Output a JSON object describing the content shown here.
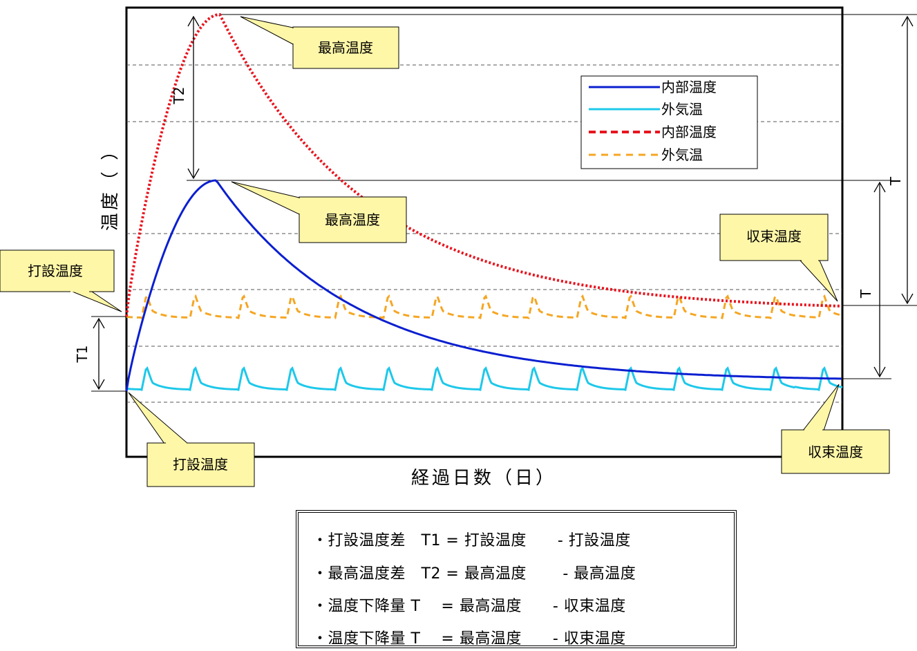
{
  "chart_data": {
    "type": "line",
    "title": "",
    "xlabel": "経過日数（日）",
    "ylabel": "温度（ ）",
    "grid": "horizontal dashed",
    "legend_position": "top-right",
    "legend": [
      {
        "name": "内部温度",
        "color": "#0a1fd0",
        "style": "solid"
      },
      {
        "name": "外気温",
        "color": "#1ec8ea",
        "style": "solid"
      },
      {
        "name": "内部温度",
        "color": "#e8141e",
        "style": "dotted"
      },
      {
        "name": "外気温",
        "color": "#f5a623",
        "style": "dashed"
      }
    ],
    "callouts": {
      "top_peak": "最高温度",
      "lower_peak": "最高温度",
      "left_start": "打設温度",
      "bottom_start": "打設温度",
      "right_converge_upper": "収束温度",
      "right_converge_lower": "収束温度"
    },
    "dimension_labels": {
      "t1": "T1",
      "t2": "T2",
      "t_outer": "T",
      "t_inner": "T"
    }
  },
  "notes": [
    "・打設温度差　T1 = 打設温度　　- 打設温度",
    "・最高温度差　T2 = 最高温度　　 - 最高温度",
    "・温度下降量 T　 = 最高温度　　- 収束温度",
    "・温度下降量 T　 = 最高温度　　- 収束温度"
  ]
}
